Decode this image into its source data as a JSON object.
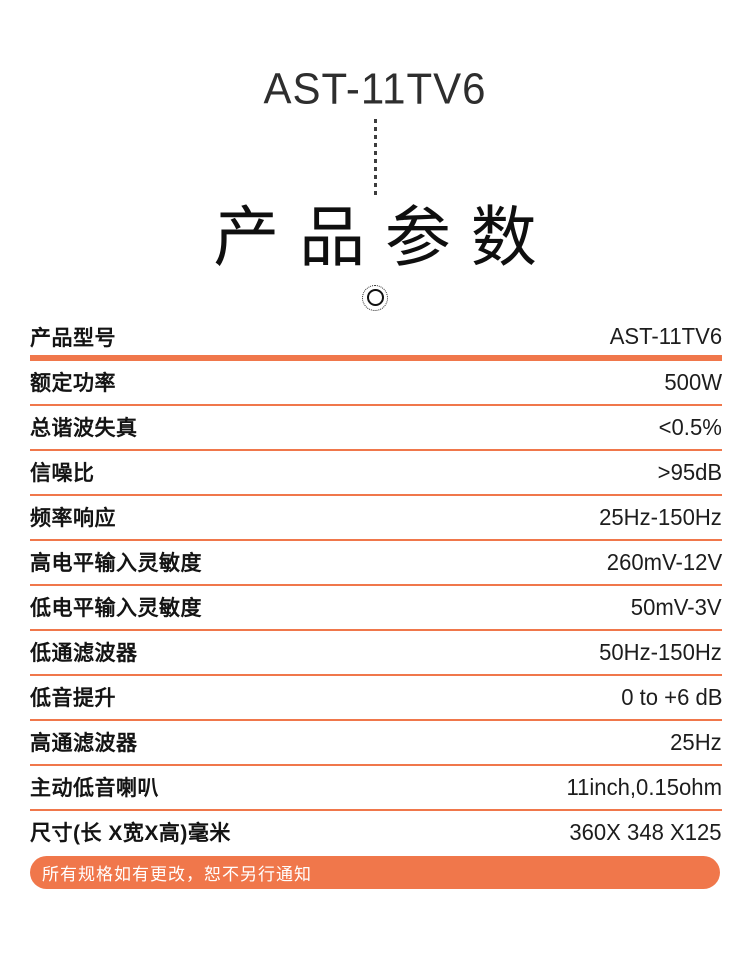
{
  "hero": {
    "model_title": "AST-11TV6",
    "section_title": "产品参数"
  },
  "spec_table": {
    "rows": [
      {
        "label": "产品型号",
        "value": "AST-11TV6"
      },
      {
        "label": "额定功率",
        "value": "500W"
      },
      {
        "label": "总谐波失真",
        "value": "<0.5%"
      },
      {
        "label": "信噪比",
        "value": ">95dB"
      },
      {
        "label": "频率响应",
        "value": "25Hz-150Hz"
      },
      {
        "label": "高电平输入灵敏度",
        "value": "260mV-12V"
      },
      {
        "label": "低电平输入灵敏度",
        "value": "50mV-3V"
      },
      {
        "label": "低通滤波器",
        "value": "50Hz-150Hz"
      },
      {
        "label": "低音提升",
        "value": "0 to +6 dB"
      },
      {
        "label": "高通滤波器",
        "value": "25Hz"
      },
      {
        "label": "主动低音喇叭",
        "value": "11inch,0.15ohm"
      },
      {
        "label": "尺寸(长 X宽X高)毫米",
        "value": "360X 348 X125"
      }
    ]
  },
  "footer_banner": {
    "notice": "所有规格如有更改，恕不另行通知"
  },
  "colors": {
    "accent_orange": "#F0774B",
    "banner_text": "#FFFFFF",
    "heading_text": "#0F0F0F",
    "label_text": "#141414",
    "value_text": "#1D1D1D"
  },
  "icons": {
    "ornament": "dotted-circle-icon",
    "connector": "vertical-dashed-line"
  }
}
